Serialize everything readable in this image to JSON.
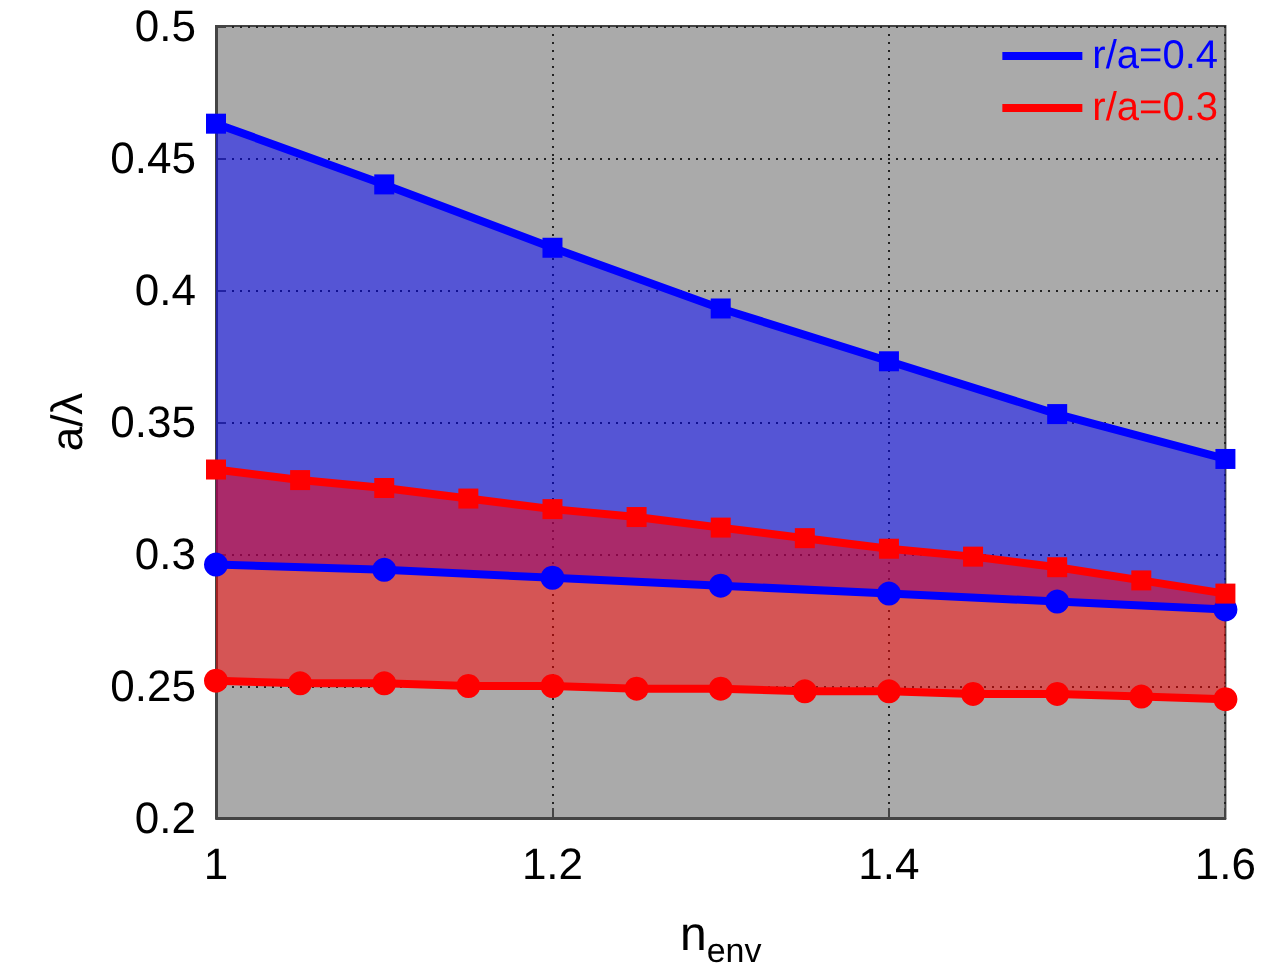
{
  "chart_data": {
    "type": "line",
    "xlabel": "n$_{env}$",
    "ylabel": "a/λ",
    "xlim": [
      1,
      1.6
    ],
    "xticks": [
      1,
      1.2,
      1.4,
      1.6
    ],
    "ylim": [
      0.2,
      0.5
    ],
    "yticks": [
      0.2,
      0.25,
      0.3,
      0.35,
      0.4,
      0.45,
      0.5
    ],
    "grid": true,
    "legend": "top right",
    "line_style": "solid",
    "series": [
      {
        "name": "r/a=0.4",
        "color": "#0000ff",
        "marker": "square",
        "x": [
          1,
          1.1,
          1.2,
          1.3,
          1.4,
          1.5,
          1.6
        ],
        "values": [
          0.463,
          0.44,
          0.416,
          0.393,
          0.373,
          0.353,
          0.336
        ],
        "lower": [
          0.296,
          0.294,
          0.291,
          0.288,
          0.285,
          0.282,
          0.279
        ],
        "upper": [
          0.463,
          0.44,
          0.416,
          0.393,
          0.373,
          0.353,
          0.336
        ]
      },
      {
        "color": "#0000ff",
        "marker": "circle",
        "x": [
          1,
          1.1,
          1.2,
          1.3,
          1.4,
          1.5,
          1.6
        ],
        "values": [
          0.296,
          0.294,
          0.291,
          0.288,
          0.285,
          0.282,
          0.279
        ]
      },
      {
        "name": "r/a=0.3",
        "color": "#ff0000",
        "marker": "square",
        "x": [
          1,
          1.05,
          1.1,
          1.15,
          1.2,
          1.25,
          1.3,
          1.35,
          1.4,
          1.45,
          1.5,
          1.55,
          1.6
        ],
        "values": [
          0.332,
          0.328,
          0.325,
          0.321,
          0.317,
          0.314,
          0.31,
          0.306,
          0.302,
          0.299,
          0.295,
          0.29,
          0.285
        ],
        "lower": [
          0.252,
          0.251,
          0.251,
          0.25,
          0.25,
          0.249,
          0.249,
          0.248,
          0.248,
          0.247,
          0.247,
          0.246,
          0.245
        ],
        "upper": [
          0.332,
          0.328,
          0.325,
          0.321,
          0.317,
          0.314,
          0.31,
          0.306,
          0.302,
          0.299,
          0.295,
          0.29,
          0.285
        ]
      },
      {
        "color": "#ff0000",
        "marker": "circle",
        "x": [
          1,
          1.05,
          1.1,
          1.15,
          1.2,
          1.25,
          1.3,
          1.35,
          1.4,
          1.45,
          1.5,
          1.55,
          1.6
        ],
        "values": [
          0.252,
          0.251,
          0.251,
          0.25,
          0.25,
          0.249,
          0.249,
          0.248,
          0.248,
          0.247,
          0.247,
          0.246,
          0.245
        ]
      }
    ]
  }
}
